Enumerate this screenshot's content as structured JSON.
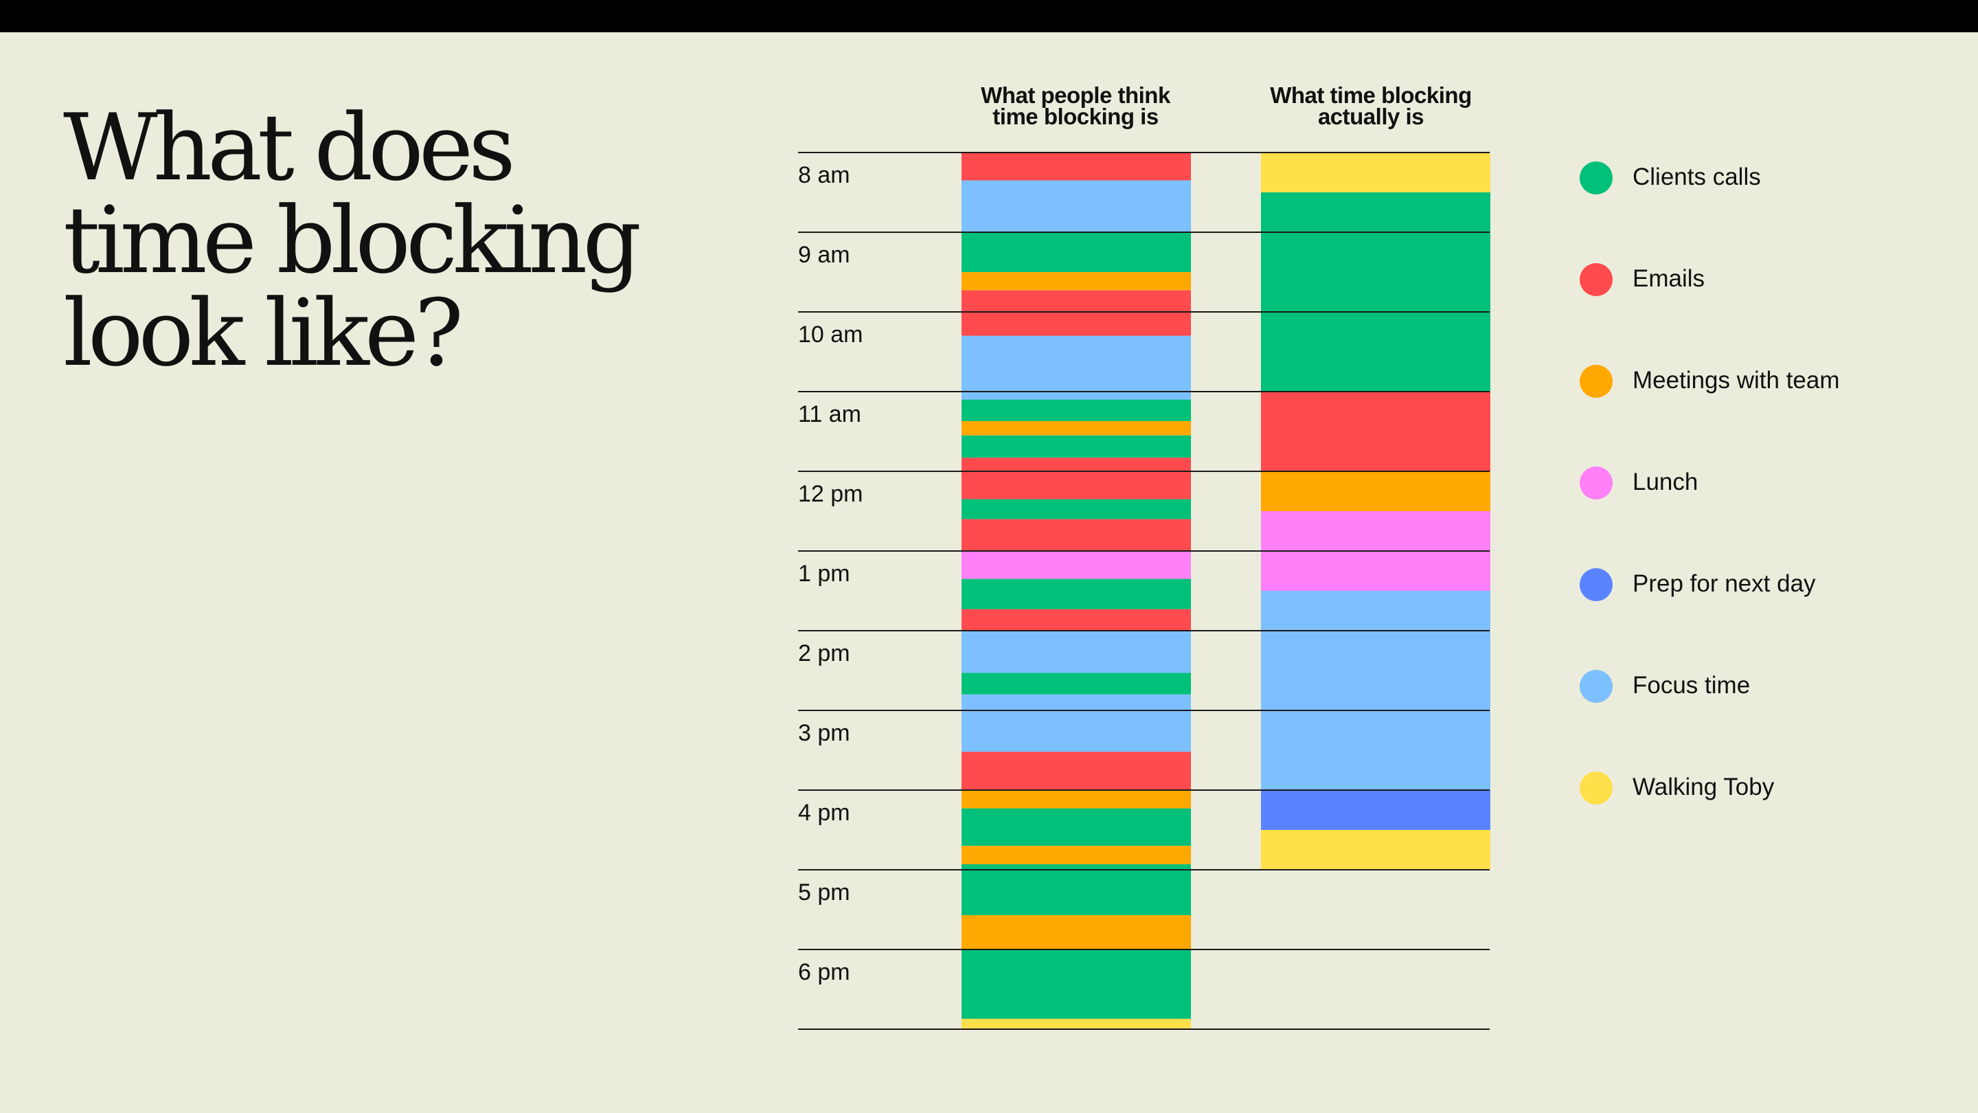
{
  "title_lines": [
    "What does",
    "time blocking",
    "look like?"
  ],
  "chart_data": {
    "type": "bar",
    "orientation": "vertical-stacked-timeline",
    "y_unit": "hour of day",
    "y_ticks": [
      {
        "hour": 8,
        "label": "8 am"
      },
      {
        "hour": 9,
        "label": "9 am"
      },
      {
        "hour": 10,
        "label": "10 am"
      },
      {
        "hour": 11,
        "label": "11 am"
      },
      {
        "hour": 12,
        "label": "12 pm"
      },
      {
        "hour": 13,
        "label": "1 pm"
      },
      {
        "hour": 14,
        "label": "2 pm"
      },
      {
        "hour": 15,
        "label": "3 pm"
      },
      {
        "hour": 16,
        "label": "4 pm"
      },
      {
        "hour": 17,
        "label": "5 pm"
      },
      {
        "hour": 18,
        "label": "6 pm"
      }
    ],
    "ylim": [
      8,
      19
    ],
    "grid": true,
    "legend_position": "right",
    "categories": [
      {
        "key": "clients",
        "label": "Clients calls",
        "color": "#00C07A"
      },
      {
        "key": "emails",
        "label": "Emails",
        "color": "#FF4A4E"
      },
      {
        "key": "meetings",
        "label": "Meetings with team",
        "color": "#FFA800"
      },
      {
        "key": "lunch",
        "label": "Lunch",
        "color": "#FF80F7"
      },
      {
        "key": "prep",
        "label": "Prep for next day",
        "color": "#5A84FF"
      },
      {
        "key": "focus",
        "label": "Focus time",
        "color": "#7CC0FF"
      },
      {
        "key": "walk",
        "label": "Walking Toby",
        "color": "#FFE04A"
      }
    ],
    "columns": [
      {
        "title_lines": [
          "What people think",
          "time blocking is"
        ],
        "blocks": [
          {
            "start": 8.0,
            "end": 8.35,
            "category": "emails"
          },
          {
            "start": 8.35,
            "end": 9.0,
            "category": "focus"
          },
          {
            "start": 9.0,
            "end": 9.5,
            "category": "clients"
          },
          {
            "start": 9.5,
            "end": 9.73,
            "category": "meetings"
          },
          {
            "start": 9.73,
            "end": 10.3,
            "category": "emails"
          },
          {
            "start": 10.3,
            "end": 11.1,
            "category": "focus"
          },
          {
            "start": 11.1,
            "end": 11.37,
            "category": "clients"
          },
          {
            "start": 11.37,
            "end": 11.55,
            "category": "meetings"
          },
          {
            "start": 11.55,
            "end": 11.83,
            "category": "clients"
          },
          {
            "start": 11.83,
            "end": 12.35,
            "category": "emails"
          },
          {
            "start": 12.35,
            "end": 12.6,
            "category": "clients"
          },
          {
            "start": 12.6,
            "end": 13.0,
            "category": "emails"
          },
          {
            "start": 13.0,
            "end": 13.35,
            "category": "lunch"
          },
          {
            "start": 13.35,
            "end": 13.73,
            "category": "clients"
          },
          {
            "start": 13.73,
            "end": 14.0,
            "category": "emails"
          },
          {
            "start": 14.0,
            "end": 14.53,
            "category": "focus"
          },
          {
            "start": 14.53,
            "end": 14.8,
            "category": "clients"
          },
          {
            "start": 14.8,
            "end": 15.52,
            "category": "focus"
          },
          {
            "start": 15.52,
            "end": 16.0,
            "category": "emails"
          },
          {
            "start": 16.0,
            "end": 16.23,
            "category": "meetings"
          },
          {
            "start": 16.23,
            "end": 16.7,
            "category": "clients"
          },
          {
            "start": 16.7,
            "end": 16.93,
            "category": "meetings"
          },
          {
            "start": 16.93,
            "end": 17.57,
            "category": "clients"
          },
          {
            "start": 17.57,
            "end": 18.0,
            "category": "meetings"
          },
          {
            "start": 18.0,
            "end": 18.87,
            "category": "clients"
          },
          {
            "start": 18.87,
            "end": 19.0,
            "category": "walk"
          }
        ]
      },
      {
        "title_lines": [
          "What time blocking",
          "actually is"
        ],
        "blocks": [
          {
            "start": 8.0,
            "end": 8.5,
            "category": "walk"
          },
          {
            "start": 8.5,
            "end": 11.0,
            "category": "clients"
          },
          {
            "start": 11.0,
            "end": 12.0,
            "category": "emails"
          },
          {
            "start": 12.0,
            "end": 12.5,
            "category": "meetings"
          },
          {
            "start": 12.5,
            "end": 13.5,
            "category": "lunch"
          },
          {
            "start": 13.5,
            "end": 16.0,
            "category": "focus"
          },
          {
            "start": 16.0,
            "end": 16.5,
            "category": "prep"
          },
          {
            "start": 16.5,
            "end": 17.0,
            "category": "walk"
          }
        ]
      }
    ]
  }
}
